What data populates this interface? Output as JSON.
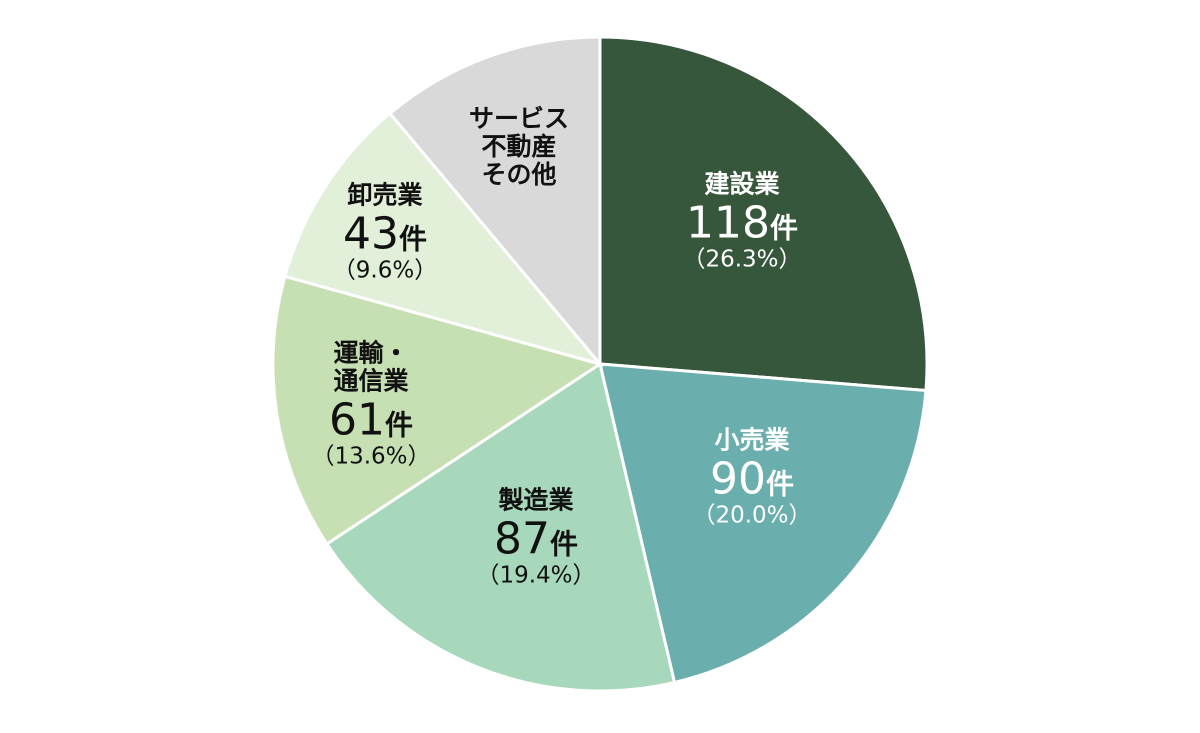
{
  "chart_data": {
    "type": "pie",
    "unit": "件",
    "slices": [
      {
        "label_lines": [
          "建設業"
        ],
        "value": 118,
        "percent": "（26.3%）",
        "color": "#36573b",
        "text_color": "#ffffff"
      },
      {
        "label_lines": [
          "小売業"
        ],
        "value": 90,
        "percent": "（20.0%）",
        "color": "#6aafad",
        "text_color": "#ffffff"
      },
      {
        "label_lines": [
          "製造業"
        ],
        "value": 87,
        "percent": "（19.4%）",
        "color": "#a8d8bb",
        "text_color": "#111111"
      },
      {
        "label_lines": [
          "運輸・",
          "通信業"
        ],
        "value": 61,
        "percent": "（13.6%）",
        "color": "#c6e0b4",
        "text_color": "#111111"
      },
      {
        "label_lines": [
          "卸売業"
        ],
        "value": 43,
        "percent": "（9.6%）",
        "color": "#e2efd9",
        "text_color": "#111111"
      },
      {
        "label_lines": [
          "サービス",
          "不動産",
          "その他"
        ],
        "value": null,
        "share": 11.1,
        "percent": "",
        "color": "#d9d9d9",
        "text_color": "#111111"
      }
    ]
  }
}
